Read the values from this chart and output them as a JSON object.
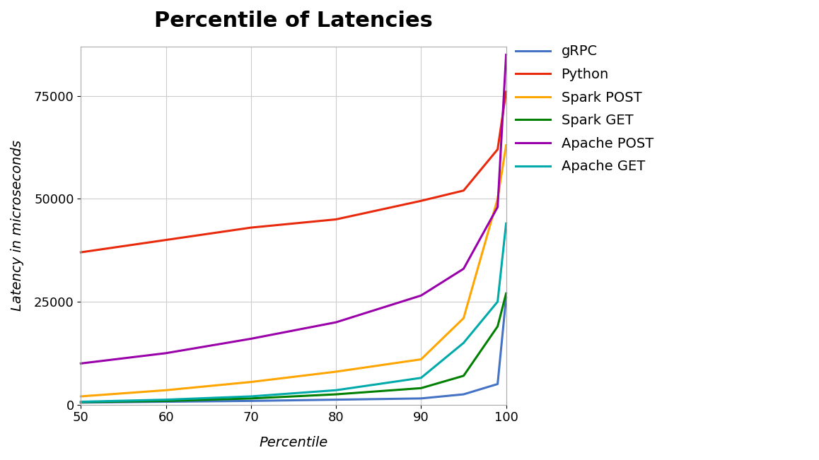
{
  "title": "Percentile of Latencies",
  "xlabel": "Percentile",
  "ylabel": "Latency in microseconds",
  "x": [
    50,
    60,
    70,
    80,
    90,
    95,
    99,
    100
  ],
  "series": {
    "gRPC": {
      "color": "#4472C4",
      "values": [
        500,
        700,
        900,
        1200,
        1500,
        2500,
        5000,
        26000
      ]
    },
    "Python": {
      "color": "#E8290B",
      "values": [
        37000,
        40000,
        43000,
        45000,
        49500,
        52000,
        62000,
        76000
      ]
    },
    "Spark POST": {
      "color": "#FFA500",
      "values": [
        2000,
        3500,
        5500,
        8000,
        11000,
        21000,
        50000,
        63000
      ]
    },
    "Spark GET": {
      "color": "#008000",
      "values": [
        600,
        900,
        1500,
        2500,
        4000,
        7000,
        19000,
        27000
      ]
    },
    "Apache POST": {
      "color": "#9900AA",
      "values": [
        10000,
        12500,
        16000,
        20000,
        26500,
        33000,
        48000,
        85000
      ]
    },
    "Apache GET": {
      "color": "#00AAAA",
      "values": [
        700,
        1200,
        2000,
        3500,
        6500,
        15000,
        25000,
        44000
      ]
    }
  },
  "ylim": [
    0,
    87000
  ],
  "xlim": [
    50,
    100
  ],
  "yticks": [
    0,
    25000,
    50000,
    75000
  ],
  "xticks": [
    50,
    60,
    70,
    80,
    90,
    100
  ],
  "background_color": "#FFFFFF",
  "grid_color": "#CCCCCC",
  "title_fontsize": 22,
  "label_fontsize": 14,
  "tick_fontsize": 13,
  "legend_fontsize": 14,
  "linewidth": 2.2
}
